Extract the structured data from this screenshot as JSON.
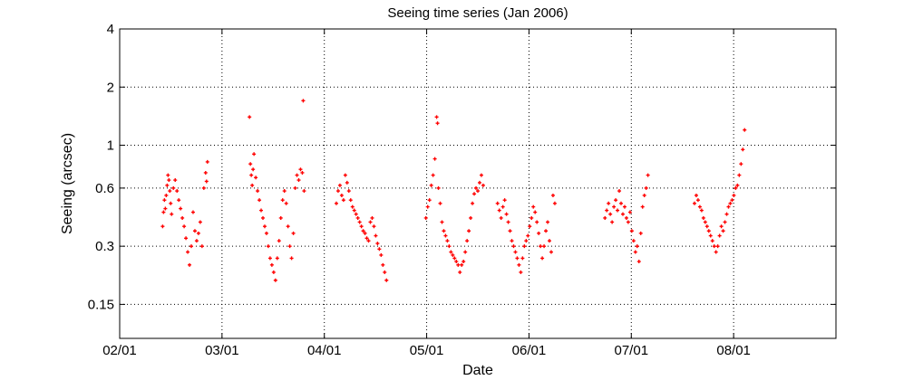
{
  "chart_data": {
    "type": "scatter",
    "title": "Seeing time series (Jan 2006)",
    "xlabel": "Date",
    "ylabel": "Seeing (arcsec)",
    "x_ticks": [
      "02/01",
      "03/01",
      "04/01",
      "05/01",
      "06/01",
      "07/01",
      "08/01"
    ],
    "y_ticks": [
      "0.15",
      "0.3",
      "0.6",
      "1",
      "2",
      "4"
    ],
    "y_tick_values": [
      0.15,
      0.3,
      0.6,
      1,
      2,
      4
    ],
    "y_scale": "log",
    "xlim": [
      1.0,
      9.0
    ],
    "ylim": [
      0.1,
      4
    ],
    "grid": true,
    "marker": "+",
    "color": "#ff0000",
    "x_units": "hours after Jan 2006 00:00 shown as MM/DD, x value = hour/24",
    "series": [
      {
        "name": "",
        "points": [
          [
            1.48,
            0.38
          ],
          [
            1.49,
            0.45
          ],
          [
            1.5,
            0.52
          ],
          [
            1.51,
            0.47
          ],
          [
            1.52,
            0.55
          ],
          [
            1.53,
            0.62
          ],
          [
            1.54,
            0.7
          ],
          [
            1.55,
            0.66
          ],
          [
            1.56,
            0.58
          ],
          [
            1.57,
            0.5
          ],
          [
            1.58,
            0.44
          ],
          [
            1.6,
            0.6
          ],
          [
            1.62,
            0.66
          ],
          [
            1.64,
            0.58
          ],
          [
            1.66,
            0.52
          ],
          [
            1.68,
            0.47
          ],
          [
            1.7,
            0.42
          ],
          [
            1.72,
            0.38
          ],
          [
            1.74,
            0.33
          ],
          [
            1.76,
            0.28
          ],
          [
            1.78,
            0.24
          ],
          [
            1.8,
            0.3
          ],
          [
            1.82,
            0.45
          ],
          [
            1.84,
            0.36
          ],
          [
            1.86,
            0.32
          ],
          [
            1.88,
            0.35
          ],
          [
            1.9,
            0.4
          ],
          [
            1.92,
            0.3
          ],
          [
            1.94,
            0.6
          ],
          [
            1.96,
            0.72
          ],
          [
            1.97,
            0.65
          ],
          [
            1.98,
            0.82
          ],
          [
            2.45,
            1.4
          ],
          [
            2.46,
            0.8
          ],
          [
            2.47,
            0.7
          ],
          [
            2.48,
            0.62
          ],
          [
            2.49,
            0.75
          ],
          [
            2.5,
            0.9
          ],
          [
            2.52,
            0.68
          ],
          [
            2.54,
            0.58
          ],
          [
            2.56,
            0.52
          ],
          [
            2.58,
            0.46
          ],
          [
            2.6,
            0.42
          ],
          [
            2.62,
            0.38
          ],
          [
            2.64,
            0.35
          ],
          [
            2.66,
            0.3
          ],
          [
            2.68,
            0.26
          ],
          [
            2.7,
            0.24
          ],
          [
            2.72,
            0.22
          ],
          [
            2.74,
            0.2
          ],
          [
            2.76,
            0.26
          ],
          [
            2.78,
            0.32
          ],
          [
            2.8,
            0.42
          ],
          [
            2.82,
            0.52
          ],
          [
            2.84,
            0.58
          ],
          [
            2.86,
            0.5
          ],
          [
            2.88,
            0.38
          ],
          [
            2.9,
            0.3
          ],
          [
            2.92,
            0.26
          ],
          [
            2.94,
            0.35
          ],
          [
            2.96,
            0.6
          ],
          [
            2.98,
            0.7
          ],
          [
            3.0,
            0.66
          ],
          [
            3.02,
            0.75
          ],
          [
            3.04,
            0.72
          ],
          [
            3.05,
            1.7
          ],
          [
            3.06,
            0.58
          ],
          [
            3.42,
            0.5
          ],
          [
            3.44,
            0.58
          ],
          [
            3.46,
            0.62
          ],
          [
            3.48,
            0.55
          ],
          [
            3.5,
            0.52
          ],
          [
            3.52,
            0.7
          ],
          [
            3.54,
            0.64
          ],
          [
            3.56,
            0.58
          ],
          [
            3.58,
            0.52
          ],
          [
            3.6,
            0.48
          ],
          [
            3.62,
            0.46
          ],
          [
            3.64,
            0.44
          ],
          [
            3.66,
            0.42
          ],
          [
            3.68,
            0.4
          ],
          [
            3.7,
            0.38
          ],
          [
            3.72,
            0.36
          ],
          [
            3.74,
            0.35
          ],
          [
            3.76,
            0.33
          ],
          [
            3.78,
            0.32
          ],
          [
            3.8,
            0.4
          ],
          [
            3.82,
            0.42
          ],
          [
            3.84,
            0.38
          ],
          [
            3.86,
            0.34
          ],
          [
            3.88,
            0.31
          ],
          [
            3.9,
            0.29
          ],
          [
            3.92,
            0.27
          ],
          [
            3.94,
            0.24
          ],
          [
            3.96,
            0.22
          ],
          [
            3.98,
            0.2
          ],
          [
            4.42,
            0.42
          ],
          [
            4.44,
            0.48
          ],
          [
            4.46,
            0.52
          ],
          [
            4.48,
            0.62
          ],
          [
            4.5,
            0.7
          ],
          [
            4.52,
            0.85
          ],
          [
            4.54,
            1.4
          ],
          [
            4.55,
            1.3
          ],
          [
            4.56,
            0.6
          ],
          [
            4.58,
            0.5
          ],
          [
            4.6,
            0.4
          ],
          [
            4.62,
            0.36
          ],
          [
            4.64,
            0.34
          ],
          [
            4.66,
            0.32
          ],
          [
            4.68,
            0.3
          ],
          [
            4.7,
            0.28
          ],
          [
            4.72,
            0.27
          ],
          [
            4.74,
            0.26
          ],
          [
            4.76,
            0.25
          ],
          [
            4.78,
            0.24
          ],
          [
            4.8,
            0.22
          ],
          [
            4.82,
            0.24
          ],
          [
            4.84,
            0.25
          ],
          [
            4.86,
            0.28
          ],
          [
            4.88,
            0.32
          ],
          [
            4.9,
            0.36
          ],
          [
            4.92,
            0.42
          ],
          [
            4.94,
            0.5
          ],
          [
            4.96,
            0.56
          ],
          [
            4.98,
            0.6
          ],
          [
            5.0,
            0.58
          ],
          [
            5.02,
            0.64
          ],
          [
            5.04,
            0.7
          ],
          [
            5.06,
            0.62
          ],
          [
            5.22,
            0.5
          ],
          [
            5.24,
            0.46
          ],
          [
            5.26,
            0.42
          ],
          [
            5.28,
            0.48
          ],
          [
            5.3,
            0.52
          ],
          [
            5.32,
            0.44
          ],
          [
            5.34,
            0.4
          ],
          [
            5.36,
            0.36
          ],
          [
            5.38,
            0.32
          ],
          [
            5.4,
            0.3
          ],
          [
            5.42,
            0.28
          ],
          [
            5.44,
            0.26
          ],
          [
            5.46,
            0.24
          ],
          [
            5.48,
            0.22
          ],
          [
            5.5,
            0.26
          ],
          [
            5.52,
            0.3
          ],
          [
            5.54,
            0.32
          ],
          [
            5.56,
            0.34
          ],
          [
            5.58,
            0.38
          ],
          [
            5.6,
            0.42
          ],
          [
            5.62,
            0.48
          ],
          [
            5.64,
            0.45
          ],
          [
            5.66,
            0.4
          ],
          [
            5.68,
            0.35
          ],
          [
            5.7,
            0.3
          ],
          [
            5.72,
            0.26
          ],
          [
            5.74,
            0.3
          ],
          [
            5.76,
            0.36
          ],
          [
            5.78,
            0.4
          ],
          [
            5.8,
            0.32
          ],
          [
            5.82,
            0.28
          ],
          [
            5.84,
            0.55
          ],
          [
            5.86,
            0.5
          ],
          [
            6.42,
            0.42
          ],
          [
            6.44,
            0.46
          ],
          [
            6.46,
            0.5
          ],
          [
            6.48,
            0.44
          ],
          [
            6.5,
            0.4
          ],
          [
            6.52,
            0.48
          ],
          [
            6.54,
            0.52
          ],
          [
            6.56,
            0.46
          ],
          [
            6.58,
            0.58
          ],
          [
            6.6,
            0.5
          ],
          [
            6.62,
            0.44
          ],
          [
            6.64,
            0.48
          ],
          [
            6.66,
            0.42
          ],
          [
            6.68,
            0.4
          ],
          [
            6.7,
            0.45
          ],
          [
            6.72,
            0.36
          ],
          [
            6.74,
            0.32
          ],
          [
            6.76,
            0.28
          ],
          [
            6.78,
            0.3
          ],
          [
            6.8,
            0.25
          ],
          [
            6.82,
            0.35
          ],
          [
            6.84,
            0.48
          ],
          [
            6.86,
            0.55
          ],
          [
            6.88,
            0.6
          ],
          [
            6.9,
            0.7
          ],
          [
            7.42,
            0.5
          ],
          [
            7.44,
            0.55
          ],
          [
            7.46,
            0.52
          ],
          [
            7.48,
            0.48
          ],
          [
            7.5,
            0.46
          ],
          [
            7.52,
            0.42
          ],
          [
            7.54,
            0.4
          ],
          [
            7.56,
            0.38
          ],
          [
            7.58,
            0.36
          ],
          [
            7.6,
            0.34
          ],
          [
            7.62,
            0.32
          ],
          [
            7.64,
            0.3
          ],
          [
            7.66,
            0.28
          ],
          [
            7.68,
            0.3
          ],
          [
            7.7,
            0.34
          ],
          [
            7.72,
            0.38
          ],
          [
            7.74,
            0.36
          ],
          [
            7.76,
            0.4
          ],
          [
            7.78,
            0.44
          ],
          [
            7.8,
            0.48
          ],
          [
            7.82,
            0.5
          ],
          [
            7.84,
            0.52
          ],
          [
            7.86,
            0.55
          ],
          [
            7.88,
            0.6
          ],
          [
            7.9,
            0.62
          ],
          [
            7.92,
            0.7
          ],
          [
            7.94,
            0.8
          ],
          [
            7.96,
            0.95
          ],
          [
            7.98,
            1.2
          ]
        ]
      }
    ]
  }
}
